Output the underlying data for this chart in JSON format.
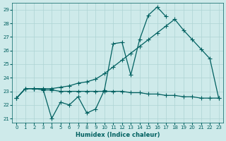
{
  "xlabel": "Humidex (Indice chaleur)",
  "bg_color": "#ceeaea",
  "grid_color": "#aed4d4",
  "line_color": "#006060",
  "xlim": [
    -0.5,
    23.5
  ],
  "ylim": [
    20.7,
    29.5
  ],
  "yticks": [
    21,
    22,
    23,
    24,
    25,
    26,
    27,
    28,
    29
  ],
  "xticks": [
    0,
    1,
    2,
    3,
    4,
    5,
    6,
    7,
    8,
    9,
    10,
    11,
    12,
    13,
    14,
    15,
    16,
    17,
    18,
    19,
    20,
    21,
    22,
    23
  ],
  "line1_x": [
    0,
    1,
    2,
    3,
    4,
    5,
    6,
    7,
    8,
    9,
    10,
    11,
    12,
    13,
    14,
    15,
    16,
    17
  ],
  "line1_y": [
    22.5,
    23.2,
    23.2,
    23.2,
    21.0,
    22.2,
    22.0,
    22.6,
    21.4,
    21.7,
    23.1,
    26.5,
    26.6,
    24.2,
    26.8,
    28.6,
    29.2,
    28.5
  ],
  "line2_x": [
    0,
    1,
    2,
    3,
    4,
    5,
    6,
    7,
    8,
    9,
    10,
    11,
    12,
    13,
    14,
    15,
    16,
    17,
    18,
    19,
    20,
    21,
    22,
    23
  ],
  "line2_y": [
    22.5,
    23.2,
    23.2,
    23.1,
    23.1,
    23.0,
    23.0,
    23.0,
    23.0,
    23.0,
    23.0,
    23.0,
    23.0,
    22.9,
    22.9,
    22.8,
    22.8,
    22.7,
    22.7,
    22.6,
    22.6,
    22.5,
    22.5,
    22.5
  ],
  "line3_x": [
    0,
    1,
    2,
    3,
    4,
    5,
    6,
    7,
    8,
    9,
    10,
    11,
    12,
    13,
    14,
    15,
    16,
    17,
    18,
    19,
    20,
    21,
    22,
    23
  ],
  "line3_y": [
    22.5,
    23.2,
    23.2,
    23.2,
    23.2,
    23.3,
    23.4,
    23.6,
    23.7,
    23.9,
    24.3,
    24.8,
    25.3,
    25.8,
    26.3,
    26.8,
    27.3,
    27.8,
    28.3,
    27.5,
    26.8,
    26.1,
    25.4,
    22.5
  ],
  "marker": "+",
  "markersize": 4,
  "linewidth": 0.9
}
